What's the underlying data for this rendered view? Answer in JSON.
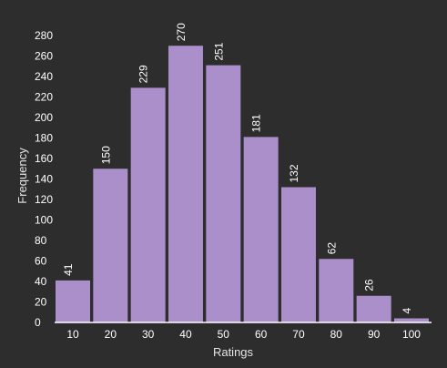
{
  "chart_data": {
    "type": "bar",
    "categories": [
      "10",
      "20",
      "30",
      "40",
      "50",
      "60",
      "70",
      "80",
      "90",
      "100"
    ],
    "values": [
      41,
      150,
      229,
      270,
      251,
      181,
      132,
      62,
      26,
      4
    ],
    "title": "",
    "xlabel": "Ratings",
    "ylabel": "Frequency",
    "ylim": [
      0,
      280
    ],
    "yticks": [
      0,
      20,
      40,
      60,
      80,
      100,
      120,
      140,
      160,
      180,
      200,
      220,
      240,
      260,
      280
    ],
    "grid": false,
    "legend": "none",
    "colors": {
      "bar": "#ab8fcb",
      "background": "#2d2d2d",
      "text": "#ffffff",
      "baseline": "#ffffff"
    }
  }
}
